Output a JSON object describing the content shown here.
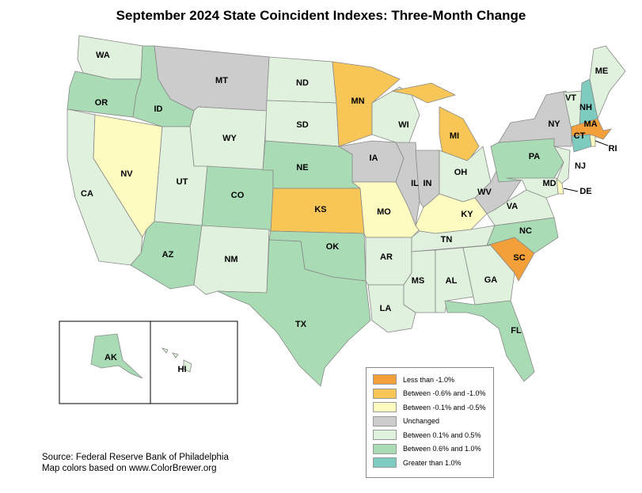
{
  "title": "September 2024 State Coincident Indexes: Three-Month Change",
  "categories": {
    "lt_neg1": {
      "label": "Less than -1.0%",
      "color": "#f4a03a"
    },
    "neg06_neg1": {
      "label": "Between -0.6% and -1.0%",
      "color": "#f8c656"
    },
    "neg01_neg05": {
      "label": "Between -0.1% and -0.5%",
      "color": "#fdfbc0"
    },
    "unchanged": {
      "label": "Unchanged",
      "color": "#cccccc"
    },
    "p01_p05": {
      "label": "Between 0.1% and 0.5%",
      "color": "#e0f2de"
    },
    "p06_p1": {
      "label": "Between 0.6% and 1.0%",
      "color": "#a9dcb5"
    },
    "gt1": {
      "label": "Greater than 1.0%",
      "color": "#7ecbbf"
    }
  },
  "legend_order": [
    "lt_neg1",
    "neg06_neg1",
    "neg01_neg05",
    "unchanged",
    "p01_p05",
    "p06_p1",
    "gt1"
  ],
  "states": {
    "WA": "p01_p05",
    "OR": "p06_p1",
    "CA": "p01_p05",
    "NV": "neg01_neg05",
    "ID": "p06_p1",
    "MT": "unchanged",
    "WY": "p01_p05",
    "UT": "p01_p05",
    "AZ": "p06_p1",
    "CO": "p06_p1",
    "NM": "p01_p05",
    "ND": "p01_p05",
    "SD": "p01_p05",
    "NE": "p06_p1",
    "KS": "neg06_neg1",
    "OK": "p06_p1",
    "TX": "p06_p1",
    "MN": "neg06_neg1",
    "IA": "unchanged",
    "MO": "neg01_neg05",
    "AR": "p01_p05",
    "LA": "p01_p05",
    "WI": "p01_p05",
    "IL": "unchanged",
    "MI": "neg06_neg1",
    "IN": "unchanged",
    "OH": "p01_p05",
    "KY": "neg01_neg05",
    "TN": "p01_p05",
    "MS": "p01_p05",
    "AL": "p01_p05",
    "GA": "p01_p05",
    "FL": "p06_p1",
    "SC": "lt_neg1",
    "NC": "p06_p1",
    "VA": "p01_p05",
    "WV": "unchanged",
    "PA": "p06_p1",
    "NY": "unchanged",
    "VT": "p01_p05",
    "NH": "gt1",
    "ME": "p01_p05",
    "MA": "lt_neg1",
    "CT": "gt1",
    "RI": "neg01_neg05",
    "NJ": "p01_p05",
    "DE": "neg01_neg05",
    "MD": "p01_p05",
    "AK": "p06_p1",
    "HI": "p01_p05"
  },
  "source": {
    "line1": "Source: Federal Reserve Bank of Philadelphia",
    "line2": "Map colors based on www.ColorBrewer.org"
  }
}
